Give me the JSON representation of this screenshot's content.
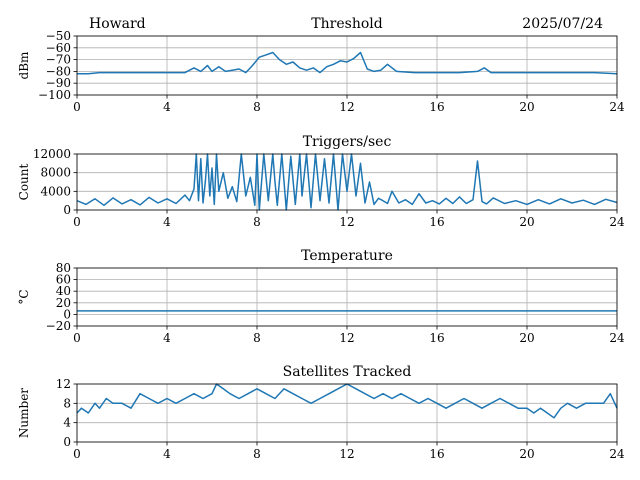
{
  "header": {
    "station": "Howard",
    "date": "2025/07/24"
  },
  "colors": {
    "line": "#1f77b4",
    "grid": "#b0b0b0",
    "axis": "#000000",
    "background": "#ffffff"
  },
  "chart_data": [
    {
      "type": "line",
      "title": "Threshold",
      "ylabel": "dBm",
      "xlim": [
        0,
        24
      ],
      "ylim": [
        -100,
        -50
      ],
      "xticks": [
        0,
        4,
        8,
        12,
        16,
        20,
        24
      ],
      "yticks": [
        -100,
        -90,
        -80,
        -70,
        -60,
        -50
      ],
      "yticklabels": [
        "−100",
        "−90",
        "−80",
        "−70",
        "−60",
        "−50"
      ],
      "grid": true,
      "series": [
        {
          "x": [
            0,
            0.5,
            1,
            2,
            3,
            4,
            4.8,
            5.2,
            5.5,
            5.8,
            6.0,
            6.3,
            6.6,
            6.9,
            7.2,
            7.5,
            7.8,
            8.1,
            8.4,
            8.7,
            9.0,
            9.3,
            9.6,
            9.9,
            10.2,
            10.5,
            10.8,
            11.1,
            11.4,
            11.7,
            12.0,
            12.3,
            12.6,
            12.9,
            13.2,
            13.5,
            13.8,
            14.2,
            15,
            16,
            17,
            17.8,
            18.1,
            18.4,
            19,
            20,
            21,
            22,
            23,
            24
          ],
          "y": [
            -82,
            -82,
            -81,
            -81,
            -81,
            -81,
            -81,
            -77,
            -80,
            -75,
            -80,
            -76,
            -80,
            -79,
            -78,
            -81,
            -75,
            -68,
            -66,
            -64,
            -70,
            -74,
            -72,
            -77,
            -79,
            -77,
            -81,
            -76,
            -74,
            -71,
            -72,
            -69,
            -64,
            -78,
            -80,
            -79,
            -74,
            -80,
            -81,
            -81,
            -81,
            -80,
            -77,
            -81,
            -81,
            -81,
            -81,
            -81,
            -81,
            -82
          ]
        }
      ]
    },
    {
      "type": "line",
      "title": "Triggers/sec",
      "ylabel": "Count",
      "xlim": [
        0,
        24
      ],
      "ylim": [
        0,
        12000
      ],
      "xticks": [
        0,
        4,
        8,
        12,
        16,
        20,
        24
      ],
      "yticks": [
        0,
        4000,
        8000,
        12000
      ],
      "grid": true,
      "series": [
        {
          "x": [
            0,
            0.4,
            0.8,
            1.2,
            1.6,
            2.0,
            2.4,
            2.8,
            3.2,
            3.6,
            4.0,
            4.4,
            4.8,
            5.0,
            5.2,
            5.3,
            5.4,
            5.5,
            5.6,
            5.7,
            5.8,
            5.9,
            6.0,
            6.1,
            6.2,
            6.3,
            6.5,
            6.7,
            6.9,
            7.1,
            7.3,
            7.5,
            7.7,
            7.9,
            8.0,
            8.1,
            8.3,
            8.5,
            8.7,
            8.8,
            8.9,
            9.1,
            9.3,
            9.5,
            9.7,
            9.9,
            10.0,
            10.2,
            10.4,
            10.6,
            10.8,
            11.0,
            11.2,
            11.4,
            11.6,
            11.8,
            12.0,
            12.2,
            12.4,
            12.6,
            12.8,
            13.0,
            13.2,
            13.4,
            13.6,
            13.8,
            14.0,
            14.3,
            14.6,
            14.9,
            15.2,
            15.5,
            15.8,
            16.1,
            16.4,
            16.7,
            17.0,
            17.3,
            17.6,
            17.8,
            18.0,
            18.2,
            18.5,
            19.0,
            19.5,
            20.0,
            20.5,
            21.0,
            21.5,
            22.0,
            22.5,
            23.0,
            23.5,
            24.0
          ],
          "y": [
            2000,
            1200,
            2400,
            1000,
            2600,
            1300,
            2200,
            1100,
            2700,
            1500,
            2400,
            1400,
            3200,
            2000,
            4500,
            12000,
            2000,
            11000,
            1500,
            6000,
            12000,
            3000,
            9000,
            1200,
            12000,
            4000,
            8000,
            2500,
            5000,
            1800,
            12000,
            3000,
            7000,
            1000,
            12000,
            0,
            12000,
            2000,
            12000,
            6000,
            1000,
            12000,
            0,
            11500,
            1200,
            12000,
            3000,
            12000,
            500,
            12000,
            2000,
            11000,
            1500,
            12000,
            0,
            12000,
            4000,
            12000,
            3000,
            10000,
            1500,
            6000,
            1200,
            2500,
            2000,
            1400,
            4000,
            1500,
            2200,
            1200,
            3500,
            1500,
            2000,
            1300,
            2500,
            1400,
            2800,
            1400,
            2200,
            10500,
            1800,
            1300,
            2600,
            1400,
            2000,
            1200,
            2200,
            1300,
            2400,
            1500,
            2100,
            1200,
            2300,
            1600
          ]
        }
      ]
    },
    {
      "type": "line",
      "title": "Temperature",
      "ylabel": "°C",
      "xlim": [
        0,
        24
      ],
      "ylim": [
        -20,
        80
      ],
      "xticks": [
        0,
        4,
        8,
        12,
        16,
        20,
        24
      ],
      "yticks": [
        -20,
        0,
        20,
        40,
        60,
        80
      ],
      "yticklabels": [
        "−20",
        "0",
        "20",
        "40",
        "60",
        "80"
      ],
      "grid": true,
      "series": [
        {
          "x": [
            0,
            24
          ],
          "y": [
            6,
            6
          ]
        }
      ]
    },
    {
      "type": "line",
      "title": "Satellites Tracked",
      "ylabel": "Number",
      "xlim": [
        0,
        24
      ],
      "ylim": [
        0,
        12
      ],
      "xticks": [
        0,
        4,
        8,
        12,
        16,
        20,
        24
      ],
      "yticks": [
        0,
        4,
        8,
        12
      ],
      "grid": true,
      "series": [
        {
          "x": [
            0,
            0.2,
            0.5,
            0.8,
            1.0,
            1.3,
            1.6,
            2.0,
            2.4,
            2.8,
            3.2,
            3.6,
            4.0,
            4.4,
            4.8,
            5.2,
            5.6,
            6.0,
            6.2,
            6.5,
            6.8,
            7.2,
            7.6,
            8.0,
            8.4,
            8.8,
            9.2,
            9.6,
            10.0,
            10.4,
            10.8,
            11.2,
            11.6,
            12.0,
            12.4,
            12.8,
            13.2,
            13.6,
            14.0,
            14.4,
            14.8,
            15.2,
            15.6,
            16.0,
            16.4,
            16.8,
            17.2,
            17.6,
            18.0,
            18.4,
            18.8,
            19.2,
            19.6,
            20.0,
            20.3,
            20.6,
            20.9,
            21.2,
            21.5,
            21.8,
            22.2,
            22.6,
            23.0,
            23.4,
            23.7,
            24.0
          ],
          "y": [
            6,
            7,
            6,
            8,
            7,
            9,
            8,
            8,
            7,
            10,
            9,
            8,
            9,
            8,
            9,
            10,
            9,
            10,
            12,
            11,
            10,
            9,
            10,
            11,
            10,
            9,
            11,
            10,
            9,
            8,
            9,
            10,
            11,
            12,
            11,
            10,
            9,
            10,
            9,
            10,
            9,
            8,
            9,
            8,
            7,
            8,
            9,
            8,
            7,
            8,
            9,
            8,
            7,
            7,
            6,
            7,
            6,
            5,
            7,
            8,
            7,
            8,
            8,
            8,
            10,
            7
          ]
        }
      ]
    }
  ]
}
